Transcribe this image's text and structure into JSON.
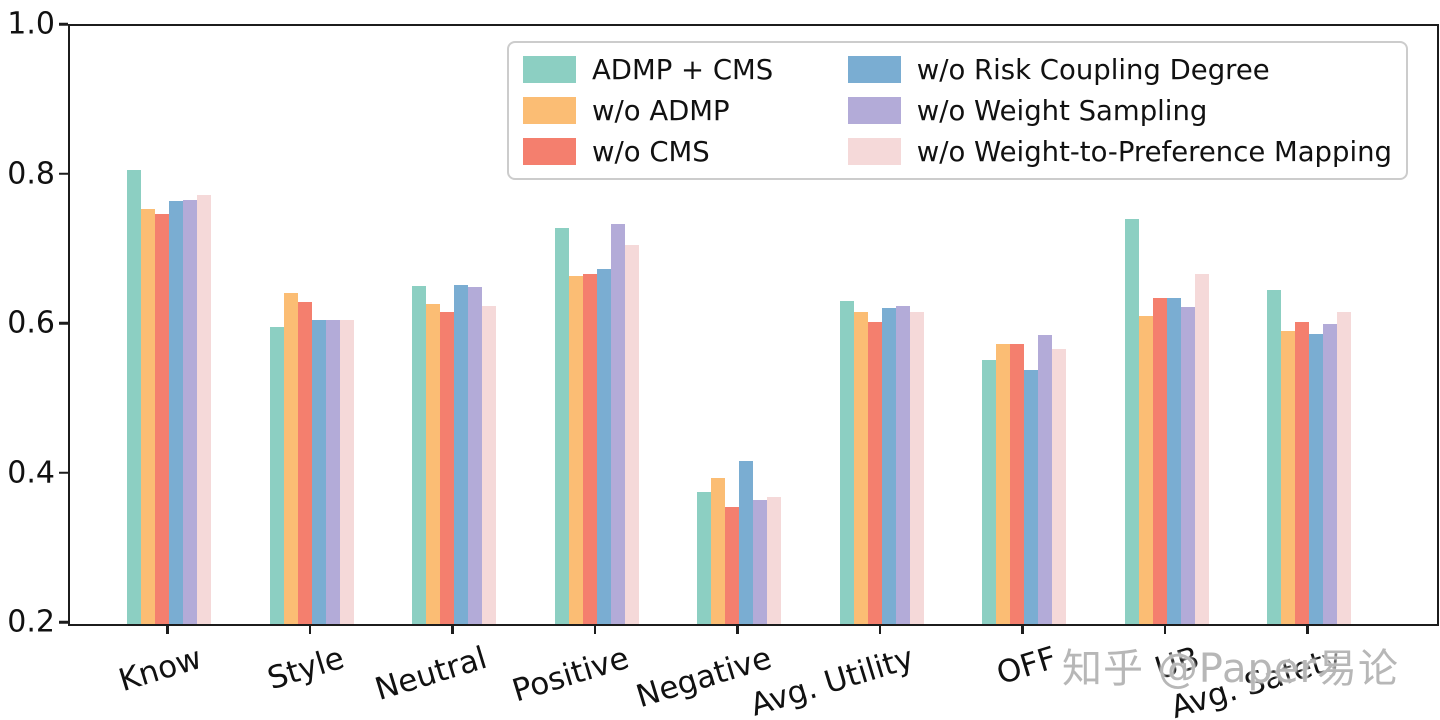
{
  "chart_data": {
    "type": "bar",
    "title": "",
    "xlabel": "",
    "ylabel": "",
    "ylim": [
      0.2,
      1.0
    ],
    "yticks": [
      "1.0",
      "0.8",
      "0.6",
      "0.4",
      "0.2"
    ],
    "ytick_values": [
      1.0,
      0.8,
      0.6,
      0.4,
      0.2
    ],
    "grid": false,
    "legend_position": "top-center-inside",
    "categories": [
      "Know",
      "Style",
      "Neutral",
      "Positive",
      "Negative",
      "Avg. Utility",
      "OFF",
      "UB",
      "Avg. Safety"
    ],
    "series": [
      {
        "name": "ADMP + CMS",
        "color": "#8CCFC2",
        "values": [
          0.807,
          0.598,
          0.652,
          0.73,
          0.376,
          0.632,
          0.553,
          0.742,
          0.647
        ]
      },
      {
        "name": "w/o ADMP",
        "color": "#FBBD74",
        "values": [
          0.755,
          0.643,
          0.628,
          0.665,
          0.395,
          0.618,
          0.575,
          0.612,
          0.592
        ]
      },
      {
        "name": "w/o CMS",
        "color": "#F47F6E",
        "values": [
          0.748,
          0.631,
          0.618,
          0.668,
          0.357,
          0.604,
          0.575,
          0.636,
          0.604
        ]
      },
      {
        "name": "w/o Risk Coupling Degree",
        "color": "#7AADD2",
        "values": [
          0.766,
          0.607,
          0.653,
          0.675,
          0.418,
          0.623,
          0.54,
          0.636,
          0.588
        ]
      },
      {
        "name": "w/o Weight Sampling",
        "color": "#B3ABD8",
        "values": [
          0.767,
          0.607,
          0.651,
          0.735,
          0.366,
          0.625,
          0.587,
          0.624,
          0.602
        ]
      },
      {
        "name": "w/o Weight-to-Preference Mapping",
        "color": "#F5D9D9",
        "values": [
          0.774,
          0.607,
          0.625,
          0.707,
          0.37,
          0.617,
          0.568,
          0.668,
          0.617
        ]
      }
    ]
  },
  "watermark": {
    "text": "知乎 @Paper易论"
  },
  "colors": {
    "spine": "#1c1c1c",
    "legend_border": "#cccccc",
    "watermark": "#b7b7b7",
    "background": "#ffffff"
  }
}
